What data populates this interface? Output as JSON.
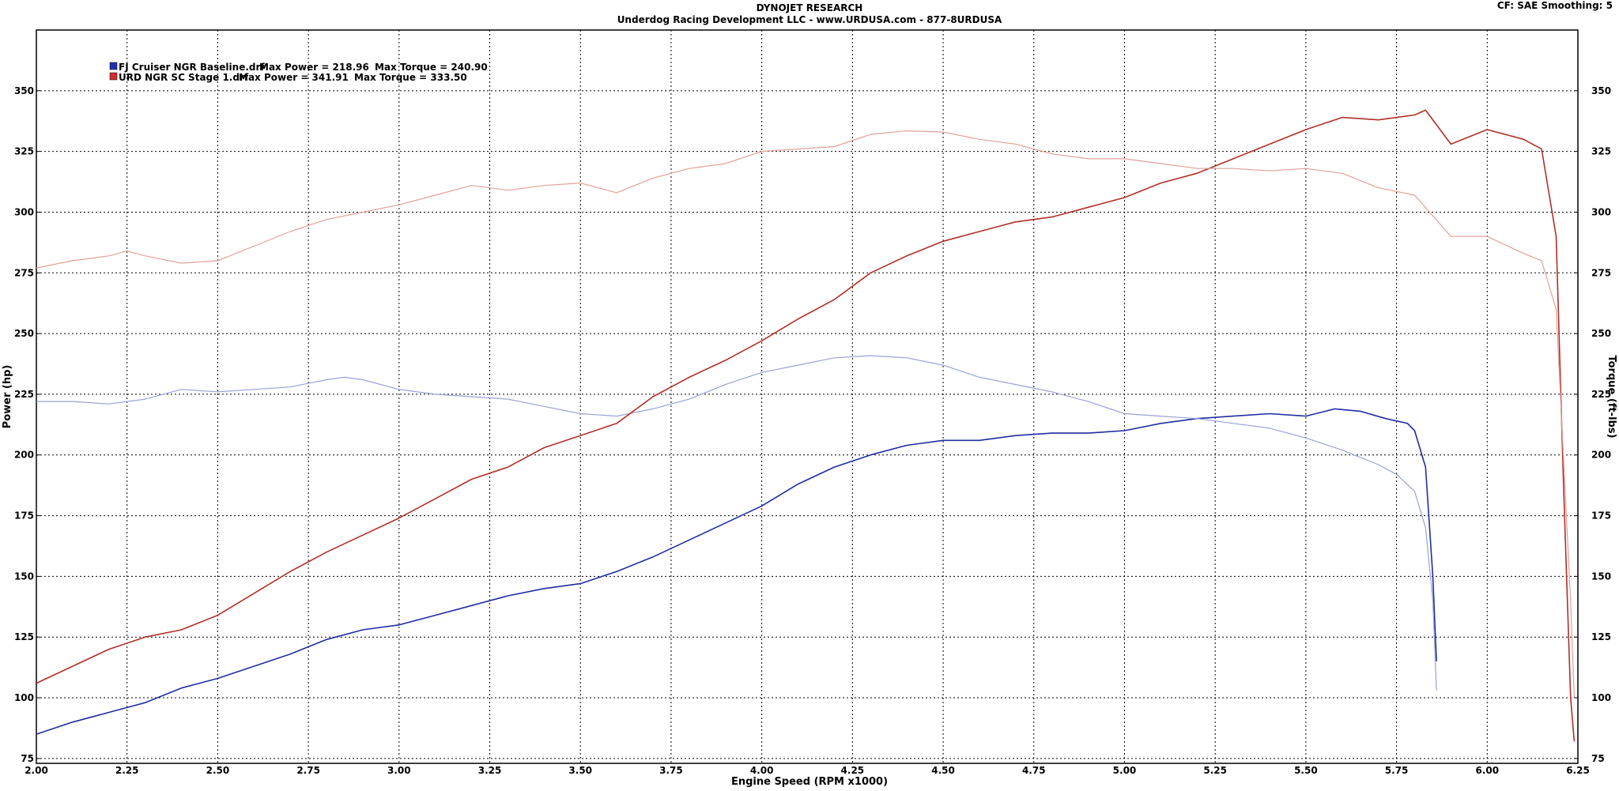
{
  "header": {
    "title": "DYNOJET RESEARCH",
    "subtitle": "Underdog Racing Development LLC - www.URDUSA.com - 877-8URDUSA",
    "settings": "CF: SAE  Smoothing: 5"
  },
  "legend": [
    {
      "file": "FJ Cruiser NGR Baseline.drf",
      "max_power_label": "Max Power = 218.96",
      "max_torque_label": "Max Torque = 240.90",
      "color": "#1f2ea0"
    },
    {
      "file": "URD NGR SC Stage 1.drf",
      "max_power_label": "Max Power = 341.91",
      "max_torque_label": "Max Torque = 333.50",
      "color": "#c0302a"
    }
  ],
  "chart_data": {
    "type": "line",
    "title": "DYNOJET RESEARCH",
    "xlabel": "Engine Speed (RPM x1000)",
    "ylabel": "Power (hp)",
    "y2label": "Torque (ft-lbs)",
    "xlim": [
      2.0,
      6.25
    ],
    "ylim": [
      73,
      375
    ],
    "y2lim": [
      73,
      375
    ],
    "x_ticks": [
      "2.00",
      "2.25",
      "2.50",
      "2.75",
      "3.00",
      "3.25",
      "3.50",
      "3.75",
      "4.00",
      "4.25",
      "4.50",
      "4.75",
      "5.00",
      "5.25",
      "5.50",
      "5.75",
      "6.00",
      "6.25"
    ],
    "y_ticks": [
      "75",
      "100",
      "125",
      "150",
      "175",
      "200",
      "225",
      "250",
      "275",
      "300",
      "325",
      "350"
    ],
    "grid": true,
    "legend_position": "top-left",
    "series": [
      {
        "name": "FJ Cruiser NGR Baseline.drf",
        "measure": "power",
        "color": "#1f2ea0",
        "x": [
          2.0,
          2.1,
          2.2,
          2.3,
          2.4,
          2.5,
          2.6,
          2.7,
          2.8,
          2.9,
          3.0,
          3.1,
          3.2,
          3.3,
          3.4,
          3.5,
          3.6,
          3.7,
          3.8,
          3.9,
          4.0,
          4.1,
          4.2,
          4.3,
          4.4,
          4.5,
          4.6,
          4.7,
          4.8,
          4.9,
          5.0,
          5.1,
          5.2,
          5.3,
          5.4,
          5.5,
          5.58,
          5.65,
          5.72,
          5.78,
          5.8,
          5.83,
          5.85,
          5.86
        ],
        "y": [
          85,
          90,
          94,
          98,
          104,
          108,
          113,
          118,
          124,
          128,
          130,
          134,
          138,
          142,
          145,
          147,
          152,
          158,
          165,
          172,
          179,
          188,
          195,
          200,
          204,
          206,
          206,
          208,
          209,
          209,
          210,
          213,
          215,
          216,
          217,
          216,
          219,
          218,
          215,
          213,
          210,
          195,
          150,
          115
        ]
      },
      {
        "name": "FJ Cruiser NGR Baseline.drf",
        "measure": "torque",
        "color": "#9aa2d8",
        "x": [
          2.0,
          2.1,
          2.2,
          2.3,
          2.4,
          2.5,
          2.6,
          2.7,
          2.8,
          2.85,
          2.9,
          3.0,
          3.1,
          3.2,
          3.3,
          3.4,
          3.5,
          3.6,
          3.7,
          3.8,
          3.9,
          4.0,
          4.1,
          4.2,
          4.3,
          4.4,
          4.5,
          4.6,
          4.7,
          4.8,
          4.9,
          5.0,
          5.1,
          5.2,
          5.3,
          5.4,
          5.5,
          5.6,
          5.7,
          5.75,
          5.8,
          5.83,
          5.85,
          5.86
        ],
        "y": [
          222,
          222,
          221,
          223,
          227,
          226,
          227,
          228,
          231,
          232,
          231,
          227,
          225,
          224,
          223,
          220,
          217,
          216,
          219,
          223,
          229,
          234,
          237,
          240,
          240.9,
          240,
          237,
          232,
          229,
          226,
          222,
          217,
          216,
          215,
          213,
          211,
          207,
          202,
          196,
          192,
          185,
          170,
          140,
          103
        ]
      },
      {
        "name": "URD NGR SC Stage 1.drf",
        "measure": "power",
        "color": "#b03028",
        "x": [
          2.0,
          2.1,
          2.2,
          2.3,
          2.4,
          2.5,
          2.6,
          2.7,
          2.8,
          2.9,
          3.0,
          3.1,
          3.2,
          3.3,
          3.4,
          3.5,
          3.6,
          3.7,
          3.8,
          3.9,
          4.0,
          4.1,
          4.2,
          4.3,
          4.4,
          4.5,
          4.6,
          4.7,
          4.8,
          4.9,
          5.0,
          5.1,
          5.2,
          5.3,
          5.4,
          5.5,
          5.6,
          5.7,
          5.8,
          5.83,
          5.9,
          6.0,
          6.1,
          6.15,
          6.19,
          6.21,
          6.23,
          6.24
        ],
        "y": [
          106,
          113,
          120,
          125,
          128,
          134,
          143,
          152,
          160,
          167,
          174,
          182,
          190,
          195,
          203,
          208,
          213,
          224,
          232,
          239,
          247,
          256,
          264,
          275,
          282,
          288,
          292,
          296,
          298,
          302,
          306,
          312,
          316,
          322,
          328,
          334,
          339,
          338,
          340,
          342,
          328,
          334,
          330,
          326,
          290,
          190,
          100,
          82
        ]
      },
      {
        "name": "URD NGR SC Stage 1.drf",
        "measure": "torque",
        "color": "#e4a098",
        "x": [
          2.0,
          2.1,
          2.2,
          2.25,
          2.3,
          2.4,
          2.5,
          2.6,
          2.7,
          2.8,
          2.9,
          3.0,
          3.1,
          3.2,
          3.3,
          3.4,
          3.5,
          3.6,
          3.7,
          3.8,
          3.9,
          4.0,
          4.1,
          4.2,
          4.3,
          4.4,
          4.5,
          4.6,
          4.7,
          4.8,
          4.9,
          5.0,
          5.1,
          5.2,
          5.3,
          5.4,
          5.5,
          5.6,
          5.7,
          5.8,
          5.9,
          6.0,
          6.1,
          6.15,
          6.19,
          6.21,
          6.23,
          6.24
        ],
        "y": [
          277,
          280,
          282,
          284,
          282,
          279,
          280,
          286,
          292,
          297,
          300,
          303,
          307,
          311,
          309,
          311,
          312,
          308,
          314,
          318,
          320,
          325,
          326,
          327,
          332,
          333.5,
          333,
          330,
          328,
          324,
          322,
          322,
          320,
          318,
          318,
          317,
          318,
          316,
          310,
          307,
          290,
          290,
          283,
          280,
          260,
          200,
          140,
          100
        ]
      }
    ]
  }
}
